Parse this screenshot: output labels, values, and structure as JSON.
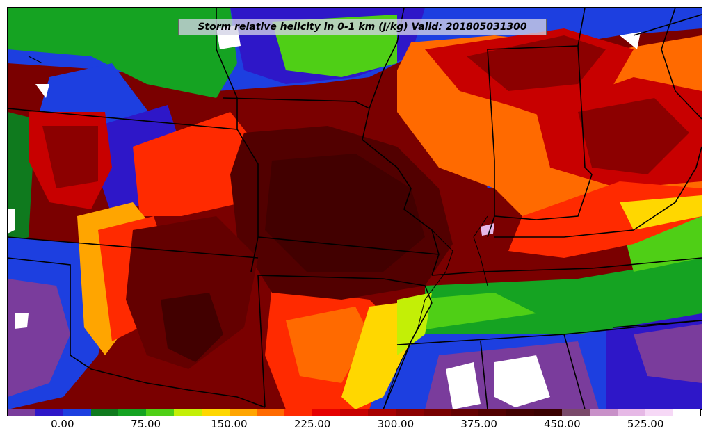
{
  "title": "Storm relative helicity in 0-1 km (J/kg) Valid: 201805031300",
  "colorbar": {
    "colors": [
      "#7a3c9c",
      "#2e17c8",
      "#1d3fe0",
      "#0f7a1e",
      "#15a322",
      "#4fcf16",
      "#c3ef06",
      "#ffd700",
      "#ffa500",
      "#ff6a00",
      "#ff2a00",
      "#e60000",
      "#c80000",
      "#a80000",
      "#8c0000",
      "#780000",
      "#640000",
      "#520000",
      "#420000",
      "#3a0000",
      "#7a4a6a",
      "#c890c8",
      "#e6b8e6",
      "#f6d8f6",
      "#ffffff"
    ],
    "tick_labels": [
      "0.00",
      "75.00",
      "150.00",
      "225.00",
      "300.00",
      "375.00",
      "450.00",
      "525.00"
    ],
    "tick_values": [
      0,
      75,
      150,
      225,
      300,
      375,
      450,
      525
    ],
    "range": [
      -50,
      575
    ]
  }
}
